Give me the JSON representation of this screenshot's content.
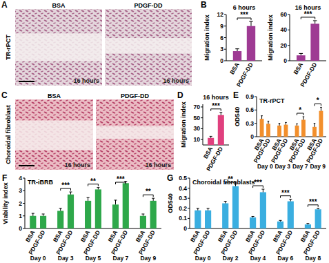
{
  "letters": [
    "A",
    "B",
    "C",
    "D",
    "E",
    "F",
    "G"
  ],
  "images": [
    {
      "row_label": "TR-rPCT",
      "panels": [
        {
          "label": "BSA",
          "caption": "16 hours"
        },
        {
          "label": "PDGF-DD",
          "caption": "16 hours"
        }
      ]
    },
    {
      "row_label": "Choroidal fibroblast",
      "panels": [
        {
          "label": "BSA",
          "caption": "16 hours"
        },
        {
          "label": "PDGF-DD",
          "caption": "16 hours"
        }
      ]
    }
  ],
  "chart_data": [
    {
      "type": "bar",
      "title": "6 hours",
      "y_label": "Migration index",
      "categories": [
        "BSA",
        "PDGF-DD"
      ],
      "values": [
        2.5,
        9
      ],
      "errors": [
        0.6,
        1.2
      ],
      "color": "#9e3a93",
      "ylim": [
        0,
        12
      ],
      "yticks": [
        0,
        3,
        6,
        9,
        12
      ],
      "significance": [
        "***"
      ]
    },
    {
      "type": "bar",
      "title": "16 hours",
      "y_label": "Migration index",
      "categories": [
        "BSA",
        "PDGF-DD"
      ],
      "values": [
        7,
        48
      ],
      "errors": [
        2.5,
        4
      ],
      "color": "#9e3a93",
      "ylim": [
        0,
        60
      ],
      "yticks": [
        0,
        20,
        40,
        60
      ],
      "significance": [
        "***"
      ]
    },
    {
      "type": "bar",
      "title": "16 hours",
      "y_label": "Migration index",
      "categories": [
        "BSA",
        "PDGF-DD"
      ],
      "values": [
        13,
        55
      ],
      "errors": [
        3,
        5
      ],
      "color": "#e0407e",
      "ylim": [
        0,
        75
      ],
      "yticks": [
        10,
        30,
        50,
        70
      ],
      "significance": [
        "***"
      ]
    },
    {
      "type": "bar",
      "title": "TR-rPCT",
      "y_label": "OD540",
      "categories": [
        "BSA",
        "PDGF-DD",
        "BSA",
        "PDGF-DD",
        "BSA",
        "PDGF-DD",
        "BSA",
        "PDGF-DD"
      ],
      "group_labels": [
        "Day 0",
        "Day 3",
        "Day 7",
        "Day 9"
      ],
      "values": [
        0.4,
        0.29,
        0.25,
        0.27,
        0.25,
        0.38,
        0.22,
        0.58
      ],
      "errors": [
        0.07,
        0.06,
        0.05,
        0.05,
        0.04,
        0.07,
        0.08,
        0.08
      ],
      "color": "#f28f2c",
      "ylim": [
        0,
        0.9
      ],
      "yticks": [
        0,
        0.3,
        0.6,
        0.9
      ],
      "significance": [
        null,
        null,
        "*",
        "*"
      ]
    },
    {
      "type": "bar",
      "title": "TR-iBRB",
      "y_label": "Viability index",
      "categories": [
        "BSA",
        "PDGF-DD",
        "BSA",
        "PDGF-DD",
        "BSA",
        "PDGF-DD",
        "BSA",
        "PDGF-DD",
        "BSA",
        "PDGF-DD"
      ],
      "group_labels": [
        "Day 0",
        "Day 3",
        "Day 5",
        "Day 7",
        "Day 9"
      ],
      "values": [
        1,
        1,
        1.4,
        2.7,
        2.2,
        3.1,
        1.9,
        3.6,
        1,
        2.2
      ],
      "errors": [
        0.2,
        0.15,
        0.2,
        0.2,
        0.25,
        0.15,
        0.35,
        0.15,
        0.15,
        0.2
      ],
      "color": "#2ea84a",
      "ylim": [
        0,
        4
      ],
      "yticks": [
        0,
        1,
        2,
        3,
        4
      ],
      "significance": [
        null,
        "***",
        "**",
        "***",
        "**"
      ]
    },
    {
      "type": "bar",
      "title": "Choroidal fibroblasts",
      "y_label": "OD540",
      "categories": [
        "BSA",
        "PDGF-DD",
        "BSA",
        "PDGF-DD",
        "BSA",
        "PDGF-DD",
        "BSA",
        "PDGF-DD",
        "BSA",
        "PDGF-DD"
      ],
      "group_labels": [
        "Day 0",
        "Day 2",
        "Day 4",
        "Day 6",
        "Day 8"
      ],
      "values": [
        0.18,
        0.18,
        0.25,
        0.42,
        0.11,
        0.36,
        0.07,
        0.27,
        0.04,
        0.19
      ],
      "errors": [
        0.02,
        0.02,
        0.02,
        0.02,
        0.01,
        0.03,
        0.01,
        0.02,
        0.01,
        0.01
      ],
      "color": "#3aaee0",
      "ylim": [
        0,
        0.5
      ],
      "yticks": [
        0,
        0.1,
        0.2,
        0.3,
        0.4,
        0.5
      ],
      "significance": [
        null,
        "**",
        "***",
        "***",
        "***"
      ]
    }
  ]
}
